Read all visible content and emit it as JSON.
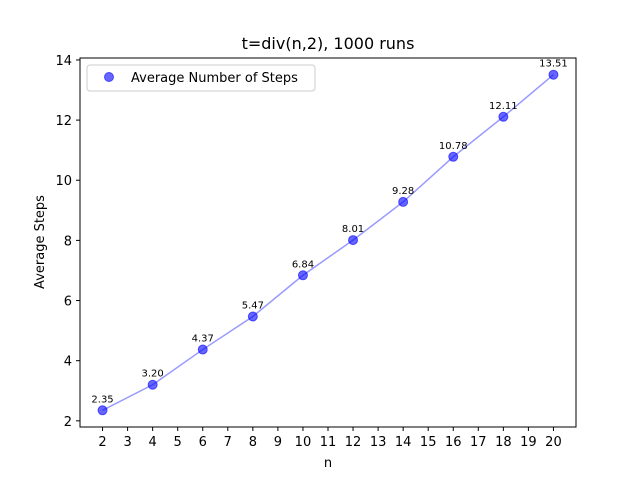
{
  "chart_data": {
    "type": "scatter",
    "title": "t=div(n,2), 1000 runs",
    "xlabel": "n",
    "ylabel": "Average Steps",
    "x_ticks": [
      "2",
      "3",
      "4",
      "5",
      "6",
      "7",
      "8",
      "9",
      "10",
      "11",
      "12",
      "13",
      "14",
      "15",
      "16",
      "17",
      "18",
      "19",
      "20"
    ],
    "y_ticks": [
      "2",
      "4",
      "6",
      "8",
      "10",
      "12",
      "14"
    ],
    "xlim": [
      1.1,
      20.9
    ],
    "ylim": [
      1.795,
      14.065
    ],
    "grid": false,
    "legend": {
      "position": "top-left",
      "entries": [
        "Average Number of Steps"
      ]
    },
    "series": [
      {
        "name": "Average Number of Steps",
        "color": "#0000ff",
        "line_color": "#9999ff",
        "x": [
          2,
          4,
          6,
          8,
          10,
          12,
          14,
          16,
          18,
          20
        ],
        "y": [
          2.35,
          3.2,
          4.37,
          5.47,
          6.84,
          8.01,
          9.28,
          10.78,
          12.11,
          13.51
        ],
        "labels": [
          "2.35",
          "3.20",
          "4.37",
          "5.47",
          "6.84",
          "8.01",
          "9.28",
          "10.78",
          "12.11",
          "13.51"
        ]
      }
    ]
  }
}
